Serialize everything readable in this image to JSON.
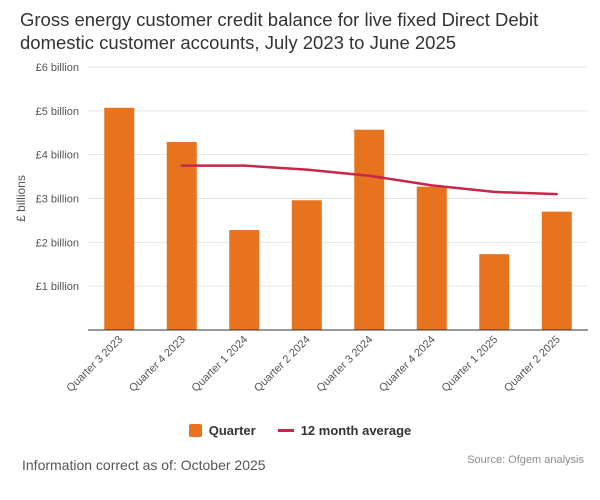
{
  "title": "Gross energy customer credit balance for live fixed Direct Debit domestic customer accounts, July 2023 to June 2025",
  "footer": {
    "info": "Information correct as of: October 2025",
    "source": "Source: Ofgem analysis"
  },
  "chart_data": {
    "type": "bar",
    "ylabel": "£ billions",
    "ylim": [
      0,
      6
    ],
    "yticks": [
      0,
      1,
      2,
      3,
      4,
      5,
      6
    ],
    "ytick_labels": [
      "",
      "£1 billion",
      "£2 billion",
      "£3 billion",
      "£4 billion",
      "£5 billion",
      "£6 billion"
    ],
    "grid": true,
    "legend_position": "bottom",
    "categories": [
      "Quarter 3 2023",
      "Quarter 4 2023",
      "Quarter 1 2024",
      "Quarter 2 2024",
      "Quarter 3 2024",
      "Quarter 4 2024",
      "Quarter 1 2025",
      "Quarter 2 2025"
    ],
    "series": [
      {
        "name": "Quarter",
        "type": "bar",
        "color": "#e8731e",
        "values": [
          5.07,
          4.29,
          2.28,
          2.96,
          4.57,
          3.27,
          1.73,
          2.7
        ]
      },
      {
        "name": "12 month average",
        "type": "line",
        "color": "#c8264a",
        "values": [
          null,
          3.75,
          3.75,
          3.66,
          3.52,
          3.3,
          3.15,
          3.1
        ]
      }
    ]
  }
}
